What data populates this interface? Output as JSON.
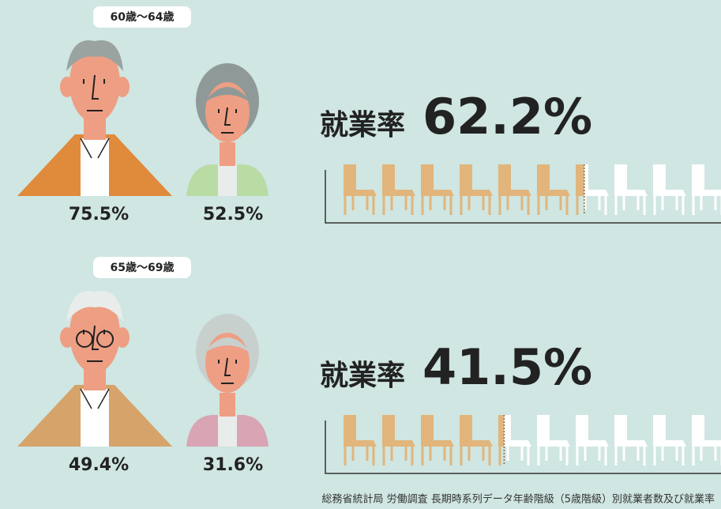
{
  "chart_data": [
    {
      "type": "pictogram",
      "title": "60歳〜64歳",
      "label": "就業率",
      "values": [
        62.2
      ],
      "value_labels": [
        "62.2%"
      ],
      "figure_labels": [
        "75.5%",
        "52.5%"
      ],
      "xlim": [
        0,
        100
      ],
      "color": "#e1b57c"
    },
    {
      "type": "pictogram",
      "title": "65歳〜69歳",
      "label": "就業率",
      "values": [
        41.5
      ],
      "value_labels": [
        "41.5%"
      ],
      "figure_labels": [
        "49.4%",
        "31.6%"
      ],
      "xlim": [
        0,
        100
      ],
      "color": "#e1b57c"
    }
  ],
  "source": "総務省統計局 労働調査 長期時系列データ年齢階級（5歳階級）別就業者数及び就業率"
}
